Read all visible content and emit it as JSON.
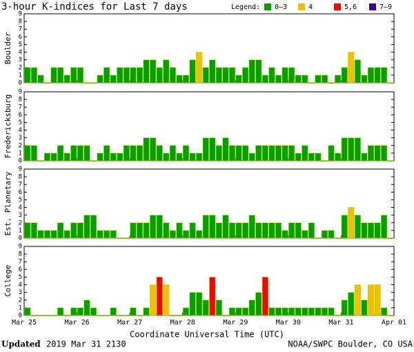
{
  "title": "3-hour K-indices for Last 7 days",
  "legend": {
    "label": "Legend:",
    "items": [
      {
        "label": "0–3",
        "color": "#00a000"
      },
      {
        "label": "4",
        "color": "#f0c000"
      },
      {
        "label": "5,6",
        "color": "#ff0000"
      },
      {
        "label": "7–9",
        "color": "#400090"
      }
    ]
  },
  "x_labels": [
    "Mar 25",
    "Mar 26",
    "Mar 27",
    "Mar 28",
    "Mar 29",
    "Mar 30",
    "Mar 31",
    "Apr 01"
  ],
  "xlabel": "Coordinate Universal Time (UTC)",
  "footer": {
    "updated_label": "Updated",
    "updated": "2019 Mar 31 2130",
    "credit": "NOAA/SWPC Boulder, CO USA"
  },
  "chart_data": [
    {
      "type": "bar",
      "ylabel": "Boulder",
      "ylim": [
        0,
        9
      ],
      "yticks": [
        0,
        1,
        2,
        3,
        4,
        5,
        6,
        7,
        8,
        9
      ],
      "values": [
        2,
        2,
        1,
        0,
        2,
        2,
        1,
        2,
        2,
        0,
        0,
        1,
        2,
        1,
        2,
        2,
        2,
        2,
        3,
        3,
        2,
        3,
        2,
        1,
        1,
        3,
        4,
        2,
        3,
        2,
        2,
        2,
        1,
        2,
        3,
        3,
        1,
        2,
        1,
        2,
        2,
        1,
        1,
        0,
        1,
        1,
        0,
        1,
        2,
        4,
        3,
        1,
        2,
        2,
        2,
        0
      ]
    },
    {
      "type": "bar",
      "ylabel": "Fredericksburg",
      "ylim": [
        0,
        9
      ],
      "yticks": [
        0,
        1,
        2,
        3,
        4,
        5,
        6,
        7,
        8,
        9
      ],
      "values": [
        2,
        2,
        0,
        1,
        1,
        2,
        1,
        2,
        2,
        2,
        0,
        1,
        2,
        1,
        1,
        2,
        2,
        2,
        3,
        3,
        2,
        1,
        2,
        1,
        2,
        1,
        1,
        3,
        3,
        2,
        3,
        2,
        2,
        2,
        1,
        2,
        2,
        2,
        2,
        2,
        2,
        1,
        2,
        1,
        1,
        0,
        2,
        1,
        3,
        3,
        3,
        1,
        2,
        2,
        2,
        0
      ]
    },
    {
      "type": "bar",
      "ylabel": "Est. Planetary",
      "ylim": [
        0,
        9
      ],
      "yticks": [
        0,
        1,
        2,
        3,
        4,
        5,
        6,
        7,
        8,
        9
      ],
      "values": [
        2,
        2,
        1,
        1,
        1,
        2,
        1,
        2,
        2,
        3,
        3,
        1,
        1,
        1,
        0,
        0,
        2,
        2,
        2,
        3,
        3,
        2,
        1,
        2,
        1,
        2,
        1,
        3,
        3,
        2,
        3,
        2,
        2,
        2,
        3,
        2,
        2,
        2,
        2,
        1,
        2,
        2,
        1,
        2,
        0,
        1,
        1,
        0,
        3,
        4,
        3,
        2,
        2,
        2,
        3,
        0
      ]
    },
    {
      "type": "bar",
      "ylabel": "College",
      "ylim": [
        0,
        9
      ],
      "yticks": [
        0,
        1,
        2,
        3,
        4,
        5,
        6,
        7,
        8,
        9
      ],
      "values": [
        1,
        0,
        0,
        0,
        0,
        1,
        0,
        1,
        1,
        2,
        1,
        0,
        0,
        1,
        0,
        0,
        1,
        0,
        1,
        4,
        5,
        4,
        0,
        0,
        1,
        3,
        3,
        2,
        5,
        2,
        0,
        1,
        1,
        1,
        2,
        3,
        5,
        1,
        1,
        1,
        1,
        1,
        1,
        1,
        1,
        1,
        1,
        0,
        2,
        3,
        4,
        2,
        4,
        4,
        1,
        0
      ]
    }
  ]
}
